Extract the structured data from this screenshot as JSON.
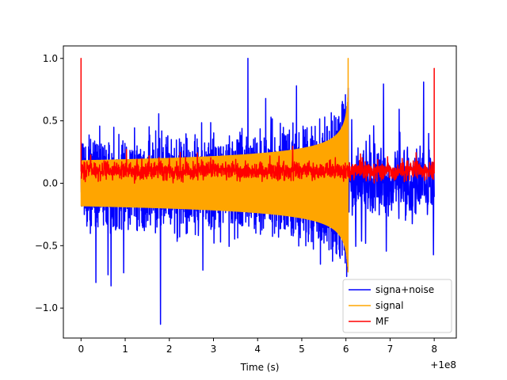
{
  "chart_data": {
    "type": "line",
    "title": "",
    "xlabel": "Time (s)",
    "ylabel": "",
    "x_offset_label": "+1e8",
    "xlim": [
      -0.4,
      8.5
    ],
    "ylim": [
      -1.24,
      1.1
    ],
    "x_ticks": [
      {
        "value": 0,
        "label": "0"
      },
      {
        "value": 1,
        "label": "1"
      },
      {
        "value": 2,
        "label": "2"
      },
      {
        "value": 3,
        "label": "3"
      },
      {
        "value": 4,
        "label": "4"
      },
      {
        "value": 5,
        "label": "5"
      },
      {
        "value": 6,
        "label": "6"
      },
      {
        "value": 7,
        "label": "7"
      },
      {
        "value": 8,
        "label": "8"
      }
    ],
    "y_ticks": [
      {
        "value": 1.0,
        "label": "1.0"
      },
      {
        "value": 0.5,
        "label": "0.5"
      },
      {
        "value": 0.0,
        "label": "0.0"
      },
      {
        "value": -0.5,
        "label": "−0.5"
      },
      {
        "value": -1.0,
        "label": "−1.0"
      }
    ],
    "legend_position": "lower-right",
    "series": [
      {
        "name": "signa+noise",
        "color": "#0000ff",
        "x_range": [
          0,
          8
        ],
        "peak_max": 1.0,
        "peak_min": -1.13,
        "description_values": {
          "band_before_6": [
            -0.6,
            0.6
          ],
          "band_after_6": [
            -0.9,
            0.65
          ]
        }
      },
      {
        "name": "signal",
        "color": "#ffa500",
        "x_range": [
          0,
          6.05
        ],
        "amplitude_start": 0.18,
        "amplitude_end": 1.0,
        "peak_time": 6.05
      },
      {
        "name": "MF",
        "color": "#ff0000",
        "x_range": [
          0,
          8
        ],
        "baseline": 0.1,
        "noise_band": [
          0.0,
          0.25
        ],
        "peaks": [
          {
            "x": 0.0,
            "y": 1.0
          },
          {
            "x": 8.0,
            "y": 0.92
          }
        ]
      }
    ]
  }
}
